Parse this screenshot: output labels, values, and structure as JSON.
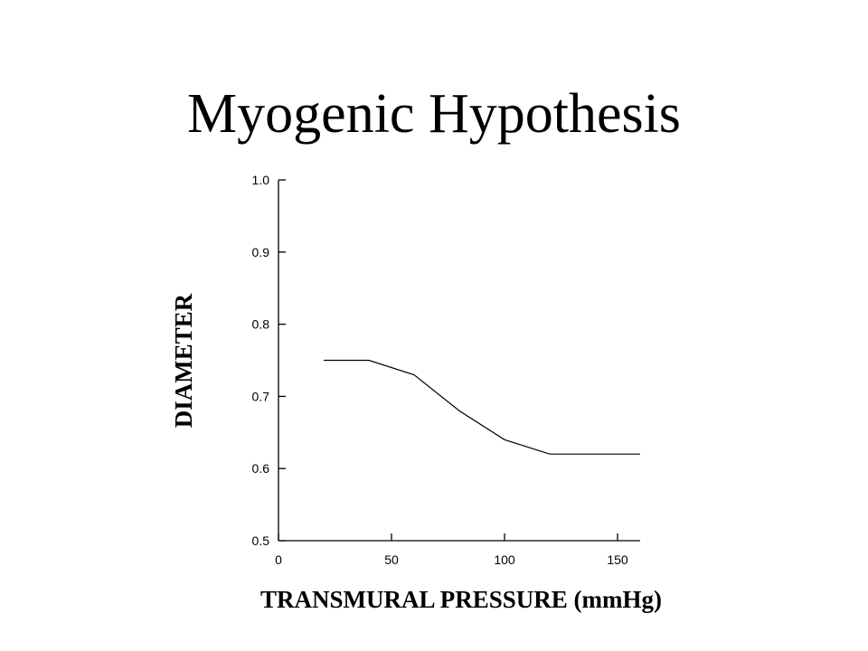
{
  "slide": {
    "title": "Myogenic Hypothesis"
  },
  "chart_data": {
    "type": "line",
    "title": "",
    "xlabel": "TRANSMURAL PRESSURE (mmHg)",
    "ylabel": "DIAMETER",
    "xlim": [
      0,
      160
    ],
    "ylim": [
      0.5,
      1.0
    ],
    "x_ticks": [
      0,
      50,
      100,
      150
    ],
    "x_tick_labels": [
      "0",
      "50",
      "100",
      "150"
    ],
    "y_ticks": [
      0.5,
      0.6,
      0.7,
      0.8,
      0.9,
      1.0
    ],
    "y_tick_labels": [
      "0.5",
      "0.6",
      "0.7",
      "0.8",
      "0.9",
      "1.0"
    ],
    "grid": false,
    "series": [
      {
        "x": [
          20,
          40,
          60,
          80,
          100,
          120,
          140,
          160
        ],
        "y": [
          0.75,
          0.75,
          0.73,
          0.68,
          0.64,
          0.62,
          0.62,
          0.62
        ],
        "color": "#000000"
      }
    ]
  }
}
